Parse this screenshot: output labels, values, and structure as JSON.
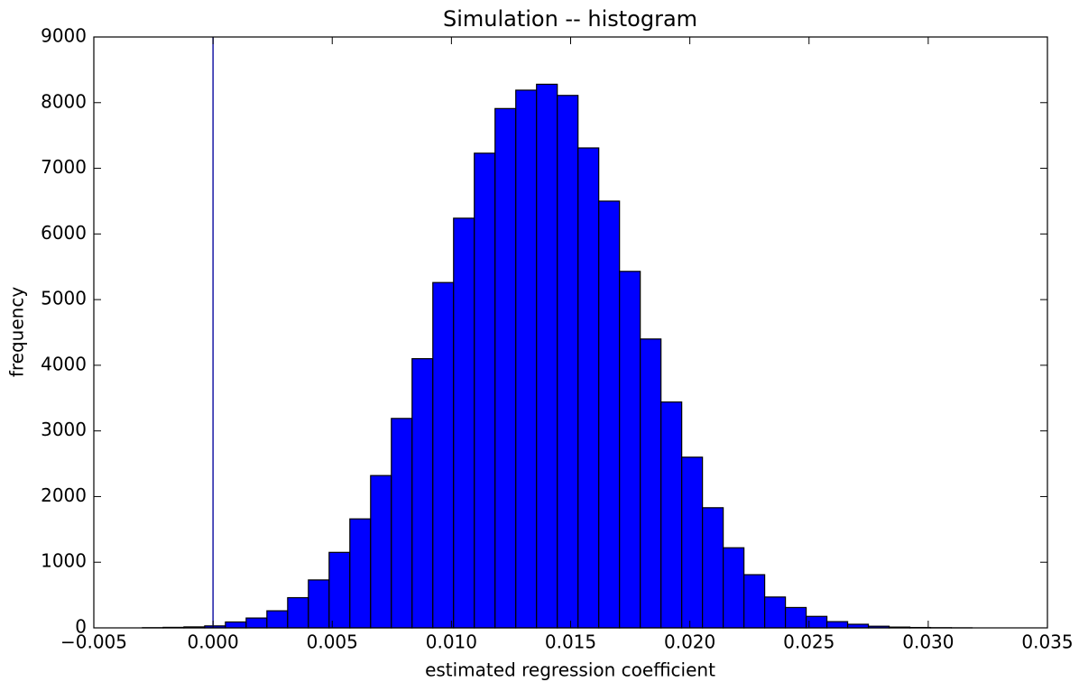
{
  "chart_data": {
    "type": "histogram",
    "title": "Simulation -- histogram",
    "xlabel": "estimated regression coefficient",
    "ylabel": "frequency",
    "color": "#0000ff",
    "edgecolor": "#000000",
    "bins": [
      -0.00296,
      -0.00209,
      -0.00122,
      -0.00035,
      0.00052,
      0.00139,
      0.00226,
      0.00313,
      0.004,
      0.00487,
      0.00574,
      0.00661,
      0.00748,
      0.00835,
      0.00922,
      0.01009,
      0.01096,
      0.01183,
      0.0127,
      0.01357,
      0.01444,
      0.01531,
      0.01618,
      0.01705,
      0.01792,
      0.01879,
      0.01966,
      0.02053,
      0.0214,
      0.02227,
      0.02314,
      0.02401,
      0.02488,
      0.02575,
      0.02662,
      0.02749,
      0.02836,
      0.02923,
      0.0301,
      0.03097,
      0.03184
    ],
    "counts": [
      3,
      8,
      15,
      30,
      90,
      150,
      260,
      460,
      730,
      1150,
      1660,
      2320,
      3190,
      4100,
      5260,
      6240,
      7230,
      7910,
      8190,
      8280,
      8110,
      7310,
      6500,
      5430,
      4400,
      3440,
      2600,
      1830,
      1220,
      810,
      470,
      310,
      175,
      95,
      55,
      25,
      12,
      6,
      3,
      1
    ],
    "vline": 0,
    "vline_color": "#1a1aa6",
    "xlim": [
      -0.005,
      0.035
    ],
    "xticks": [
      {
        "value": -0.005,
        "label": "−0.005"
      },
      {
        "value": 0,
        "label": "0.000"
      },
      {
        "value": 0.005,
        "label": "0.005"
      },
      {
        "value": 0.01,
        "label": "0.010"
      },
      {
        "value": 0.015,
        "label": "0.015"
      },
      {
        "value": 0.02,
        "label": "0.020"
      },
      {
        "value": 0.025,
        "label": "0.025"
      },
      {
        "value": 0.03,
        "label": "0.030"
      },
      {
        "value": 0.035,
        "label": "0.035"
      }
    ],
    "ylim": [
      0,
      9000
    ],
    "yticks": [
      0,
      1000,
      2000,
      3000,
      4000,
      5000,
      6000,
      7000,
      8000,
      9000
    ],
    "grid": false
  }
}
